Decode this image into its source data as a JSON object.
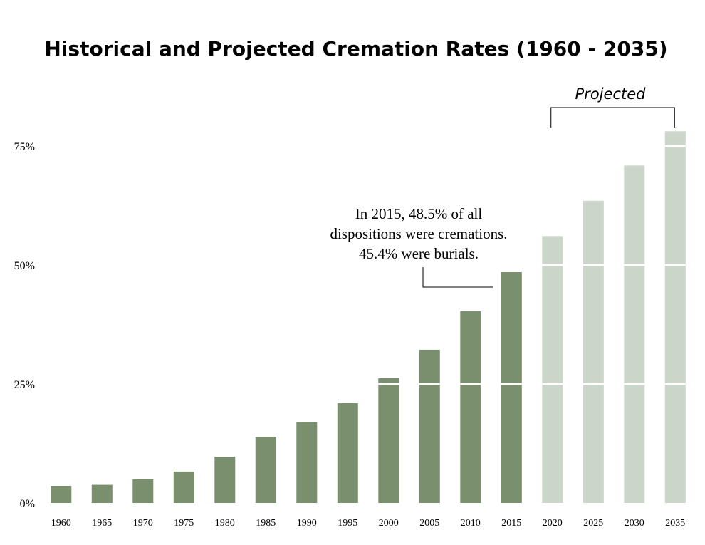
{
  "chart_data": {
    "type": "bar",
    "title": "Historical and Projected Cremation Rates (1960 - 2035)",
    "xlabel": "",
    "ylabel": "",
    "ylim": [
      0,
      80
    ],
    "yticks": [
      0,
      25,
      50,
      75
    ],
    "ytick_labels": [
      "0%",
      "25%",
      "50%",
      "75%"
    ],
    "gridlines": [
      25,
      50,
      75
    ],
    "categories": [
      "1960",
      "1965",
      "1970",
      "1975",
      "1980",
      "1985",
      "1990",
      "1995",
      "2000",
      "2005",
      "2010",
      "2015",
      "2020",
      "2025",
      "2030",
      "2035"
    ],
    "values": [
      3.6,
      3.8,
      5.0,
      6.6,
      9.7,
      13.9,
      17.0,
      21.0,
      26.2,
      32.2,
      40.3,
      48.5,
      56.1,
      63.5,
      70.9,
      78.1
    ],
    "projected_flags": [
      false,
      false,
      false,
      false,
      false,
      false,
      false,
      false,
      false,
      false,
      false,
      false,
      true,
      true,
      true,
      true
    ],
    "colors": {
      "historical": "#7a8f6e",
      "projected": "#ccd5c9",
      "gridline": "#ffffff"
    },
    "annotation": {
      "lines": [
        "In 2015, 48.5% of all",
        "dispositions were cremations.",
        "45.4% were burials."
      ],
      "target_category": "2015"
    },
    "projected_label": "Projected"
  }
}
